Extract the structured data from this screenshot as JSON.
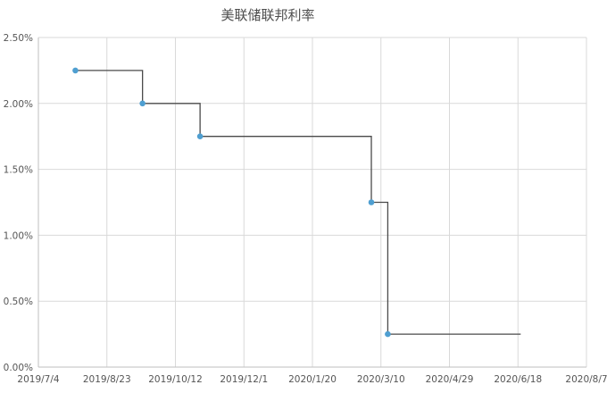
{
  "chart_data": {
    "type": "line",
    "title": "美联储联邦利率",
    "xlabel": "",
    "ylabel": "",
    "x_ticks": [
      "2019/7/4",
      "2019/8/23",
      "2019/10/12",
      "2019/12/1",
      "2020/1/20",
      "2020/3/10",
      "2020/4/29",
      "2020/6/18",
      "2020/8/7"
    ],
    "y_ticks": [
      "0.00%",
      "0.50%",
      "1.00%",
      "1.50%",
      "2.00%",
      "2.50%"
    ],
    "xlim": [
      "2019-07-04",
      "2020-08-07"
    ],
    "ylim": [
      0,
      2.5
    ],
    "grid": true,
    "legend": "none",
    "step": "post",
    "series": [
      {
        "points": [
          {
            "x": "2019-07-31",
            "y": 2.25
          },
          {
            "x": "2019-09-18",
            "y": 2.0
          },
          {
            "x": "2019-10-30",
            "y": 1.75
          },
          {
            "x": "2020-03-03",
            "y": 1.25
          },
          {
            "x": "2020-03-15",
            "y": 0.25
          },
          {
            "x": "2020-06-20",
            "y": 0.25
          }
        ],
        "color": "#4f9fd1",
        "line_color": "#4a4a4a"
      }
    ]
  }
}
